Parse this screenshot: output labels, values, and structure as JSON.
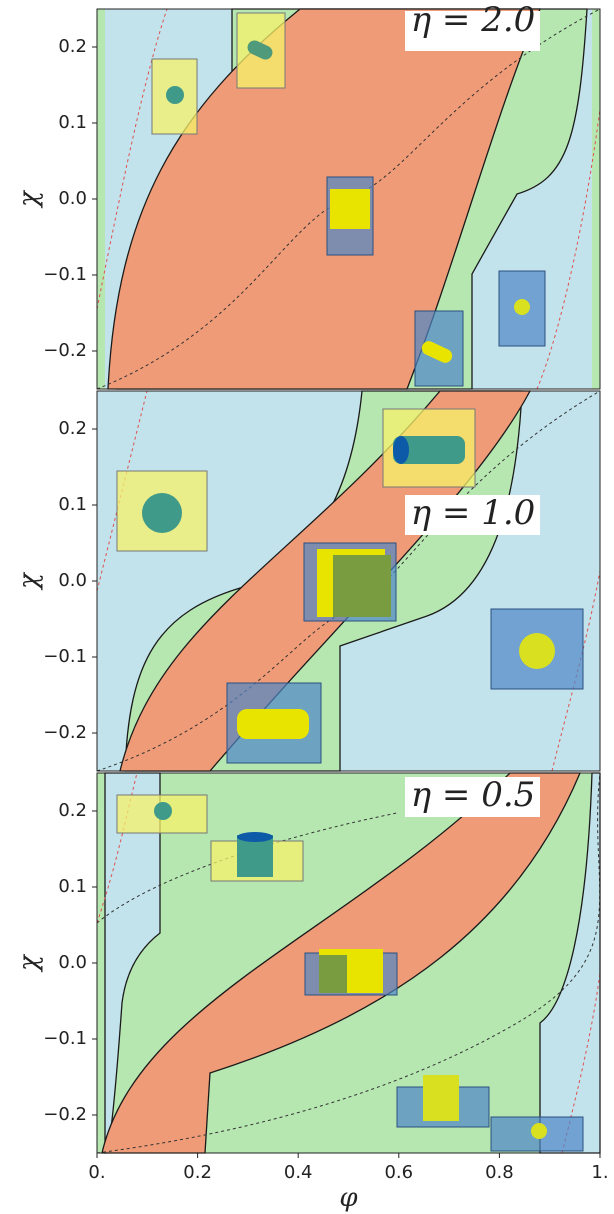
{
  "chart_data": [
    {
      "type": "phase-diagram",
      "annotation": "η = 2.0",
      "y_label": "χ",
      "xlim": [
        0,
        1
      ],
      "ylim": [
        -0.25,
        0.25
      ],
      "yticks": [
        {
          "value": -0.2,
          "label": "−0.2"
        },
        {
          "value": -0.1,
          "label": "−0.1"
        },
        {
          "value": 0,
          "label": "0.0"
        },
        0.1,
        0.2
      ]
    },
    {
      "type": "phase-diagram",
      "annotation": "η = 1.0",
      "y_label": "χ",
      "xlim": [
        0,
        1
      ],
      "ylim": [
        -0.25,
        0.25
      ],
      "yticks": [
        {
          "value": -0.2,
          "label": "−0.2"
        },
        {
          "value": -0.1,
          "label": "−0.1"
        },
        {
          "value": 0,
          "label": "0.0"
        },
        0.1,
        0.2
      ]
    },
    {
      "type": "phase-diagram",
      "annotation": "η = 0.5",
      "y_label": "χ",
      "x_label": "φ",
      "xlim": [
        0,
        1
      ],
      "ylim": [
        -0.25,
        0.25
      ],
      "yticks": [
        {
          "value": -0.2,
          "label": "−0.2"
        },
        {
          "value": -0.1,
          "label": "−0.1"
        },
        {
          "value": 0,
          "label": "0.0"
        },
        0.1,
        0.2
      ],
      "xticks": [
        {
          "value": 0,
          "label": "0."
        },
        0.2,
        0.4,
        0.6,
        0.8,
        {
          "value": 1,
          "label": "1."
        }
      ]
    }
  ]
}
